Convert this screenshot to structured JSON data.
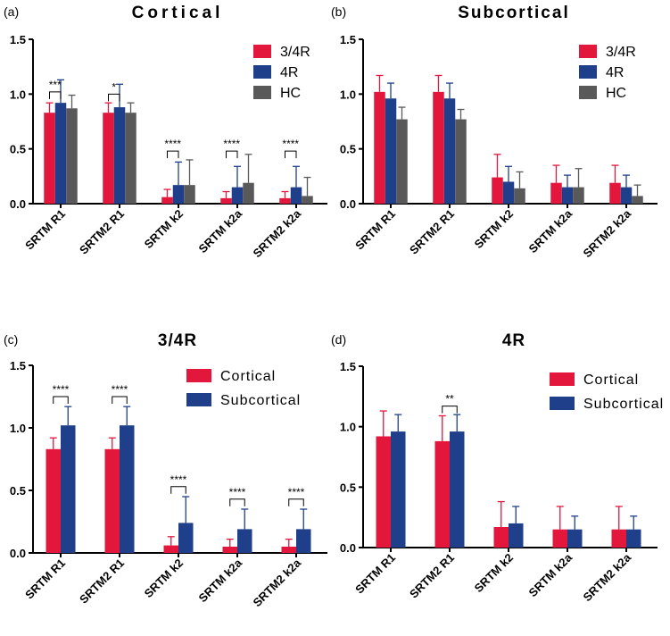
{
  "colors": {
    "red": "#e3163b",
    "blue": "#1f3f8a",
    "gray": "#595959",
    "axis": "#000000"
  },
  "chart_data": [
    {
      "id": "a",
      "panel_label": "(a)",
      "title": "Cortical",
      "type": "bar",
      "categories": [
        "SRTM R1",
        "SRTM2 R1",
        "SRTM k2",
        "SRTM k2a",
        "SRTM2 k2a"
      ],
      "ylim": [
        0,
        1.5
      ],
      "yticks": [
        "0.0",
        "0.5",
        "1.0",
        "1.5"
      ],
      "tick_values": [
        0,
        0.5,
        1.0,
        1.5
      ],
      "legend": "top-right",
      "series": [
        {
          "name": "3/4R",
          "color": "red",
          "values": [
            0.83,
            0.83,
            0.06,
            0.05,
            0.05
          ],
          "errors": [
            0.09,
            0.09,
            0.07,
            0.06,
            0.06
          ]
        },
        {
          "name": "4R",
          "color": "blue",
          "values": [
            0.92,
            0.88,
            0.17,
            0.15,
            0.15
          ],
          "errors": [
            0.21,
            0.21,
            0.21,
            0.19,
            0.19
          ]
        },
        {
          "name": "HC",
          "color": "gray",
          "values": [
            0.87,
            0.83,
            0.17,
            0.19,
            0.07
          ],
          "errors": [
            0.12,
            0.09,
            0.23,
            0.26,
            0.17
          ]
        }
      ],
      "significance": [
        {
          "cat": 0,
          "from": 0,
          "to": 1,
          "label": "***",
          "level": 1.02
        },
        {
          "cat": 1,
          "from": 0,
          "to": 1,
          "label": "*",
          "level": 1.0
        },
        {
          "cat": 2,
          "from": 0,
          "to": 1,
          "label": "****",
          "level": 0.48
        },
        {
          "cat": 3,
          "from": 0,
          "to": 1,
          "label": "****",
          "level": 0.48
        },
        {
          "cat": 4,
          "from": 0,
          "to": 1,
          "label": "****",
          "level": 0.48
        }
      ]
    },
    {
      "id": "b",
      "panel_label": "(b)",
      "title": "Subcortical",
      "type": "bar",
      "categories": [
        "SRTM R1",
        "SRTM2 R1",
        "SRTM k2",
        "SRTM k2a",
        "SRTM2 k2a"
      ],
      "ylim": [
        0,
        1.5
      ],
      "yticks": [
        "0.0",
        "0.5",
        "1.0",
        "1.5"
      ],
      "tick_values": [
        0,
        0.5,
        1.0,
        1.5
      ],
      "legend": "top-right",
      "series": [
        {
          "name": "3/4R",
          "color": "red",
          "values": [
            1.02,
            1.02,
            0.24,
            0.19,
            0.19
          ],
          "errors": [
            0.15,
            0.15,
            0.21,
            0.16,
            0.16
          ]
        },
        {
          "name": "4R",
          "color": "blue",
          "values": [
            0.96,
            0.96,
            0.2,
            0.15,
            0.15
          ],
          "errors": [
            0.14,
            0.14,
            0.14,
            0.11,
            0.11
          ]
        },
        {
          "name": "HC",
          "color": "gray",
          "values": [
            0.77,
            0.77,
            0.14,
            0.15,
            0.07
          ],
          "errors": [
            0.11,
            0.09,
            0.15,
            0.17,
            0.1
          ]
        }
      ],
      "significance": []
    },
    {
      "id": "c",
      "panel_label": "(c)",
      "title": "3/4R",
      "type": "bar",
      "categories": [
        "SRTM R1",
        "SRTM2 R1",
        "SRTM k2",
        "SRTM k2a",
        "SRTM2 k2a"
      ],
      "ylim": [
        0,
        1.5
      ],
      "yticks": [
        "0.0",
        "0.5",
        "1.0",
        "1.5"
      ],
      "tick_values": [
        0,
        0.5,
        1.0,
        1.5
      ],
      "legend": "top-right",
      "series": [
        {
          "name": "Cortical",
          "color": "red",
          "values": [
            0.83,
            0.83,
            0.06,
            0.05,
            0.05
          ],
          "errors": [
            0.09,
            0.09,
            0.07,
            0.06,
            0.06
          ]
        },
        {
          "name": "Subcortical",
          "color": "blue",
          "values": [
            1.02,
            1.02,
            0.24,
            0.19,
            0.19
          ],
          "errors": [
            0.15,
            0.15,
            0.21,
            0.16,
            0.16
          ]
        }
      ],
      "significance": [
        {
          "cat": 0,
          "from": 0,
          "to": 1,
          "label": "****",
          "level": 1.25
        },
        {
          "cat": 1,
          "from": 0,
          "to": 1,
          "label": "****",
          "level": 1.25
        },
        {
          "cat": 2,
          "from": 0,
          "to": 1,
          "label": "****",
          "level": 0.53
        },
        {
          "cat": 3,
          "from": 0,
          "to": 1,
          "label": "****",
          "level": 0.43
        },
        {
          "cat": 4,
          "from": 0,
          "to": 1,
          "label": "****",
          "level": 0.43
        }
      ]
    },
    {
      "id": "d",
      "panel_label": "(d)",
      "title": "4R",
      "type": "bar",
      "categories": [
        "SRTM R1",
        "SRTM2 R1",
        "SRTM k2",
        "SRTM k2a",
        "SRTM2 k2a"
      ],
      "ylim": [
        0,
        1.5
      ],
      "yticks": [
        "0.0",
        "0.5",
        "1.0",
        "1.5"
      ],
      "tick_values": [
        0,
        0.5,
        1.0,
        1.5
      ],
      "legend": "top-right",
      "series": [
        {
          "name": "Cortical",
          "color": "red",
          "values": [
            0.92,
            0.88,
            0.17,
            0.15,
            0.15
          ],
          "errors": [
            0.21,
            0.21,
            0.21,
            0.19,
            0.19
          ]
        },
        {
          "name": "Subcortical",
          "color": "blue",
          "values": [
            0.96,
            0.96,
            0.2,
            0.15,
            0.15
          ],
          "errors": [
            0.14,
            0.14,
            0.14,
            0.11,
            0.11
          ]
        }
      ],
      "significance": [
        {
          "cat": 1,
          "from": 0,
          "to": 1,
          "label": "**",
          "level": 1.17
        }
      ]
    }
  ]
}
